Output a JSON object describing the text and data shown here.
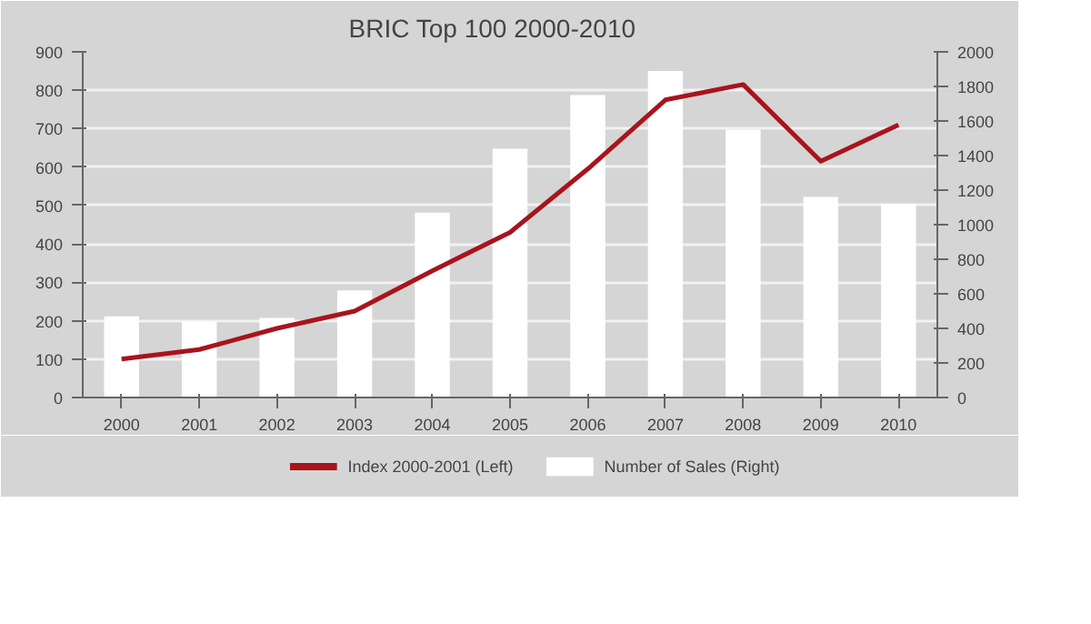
{
  "chart_data": {
    "type": "bar",
    "title": "BRIC   Top 100    2000-2010",
    "categories": [
      "2000",
      "2001",
      "2002",
      "2003",
      "2004",
      "2005",
      "2006",
      "2007",
      "2008",
      "2009",
      "2010"
    ],
    "series": [
      {
        "name": "Index 2000-2001 (Left)",
        "type": "line",
        "color": "#a8141c",
        "values": [
          100,
          125,
          180,
          225,
          330,
          430,
          595,
          775,
          815,
          615,
          710
        ]
      },
      {
        "name": "Number of Sales (Right)",
        "axis": "y2",
        "color": "#ffffff",
        "values": [
          470,
          440,
          460,
          620,
          1070,
          1440,
          1750,
          1890,
          1550,
          1160,
          1120
        ]
      }
    ],
    "ylim": [
      0,
      900
    ],
    "yticks": [
      0,
      100,
      200,
      300,
      400,
      500,
      600,
      700,
      800,
      900
    ],
    "y2lim": [
      0,
      2000
    ],
    "y2ticks": [
      0,
      200,
      400,
      600,
      800,
      1000,
      1200,
      1400,
      1600,
      1800,
      2000
    ],
    "grid": "y",
    "legend": "bottom"
  }
}
